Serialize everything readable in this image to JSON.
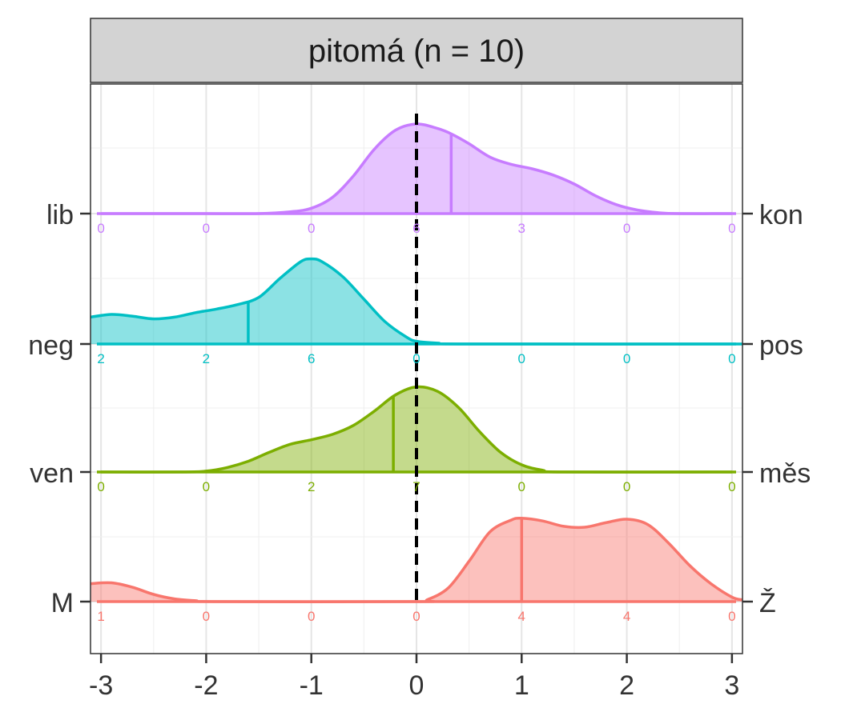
{
  "chart_data": {
    "type": "area",
    "panel_title": "pitomá (n = 10)",
    "x_ticks": [
      -3,
      -2,
      -1,
      0,
      1,
      2,
      3
    ],
    "xlim": [
      -3.1,
      3.1
    ],
    "grid": true,
    "reference_line_x": 0,
    "rows": [
      {
        "left_label": "lib",
        "right_label": "kon",
        "color": "#C77CFF",
        "mean": 0.33,
        "counts": [
          0,
          0,
          0,
          6,
          3,
          0,
          0
        ],
        "density": [
          [
            -3,
            0
          ],
          [
            -2.5,
            0
          ],
          [
            -2,
            0
          ],
          [
            -1.5,
            0
          ],
          [
            -1.2,
            0.02
          ],
          [
            -1,
            0.06
          ],
          [
            -0.8,
            0.18
          ],
          [
            -0.6,
            0.42
          ],
          [
            -0.4,
            0.72
          ],
          [
            -0.2,
            0.93
          ],
          [
            0,
            1.0
          ],
          [
            0.2,
            0.95
          ],
          [
            0.33,
            0.89
          ],
          [
            0.5,
            0.78
          ],
          [
            0.7,
            0.63
          ],
          [
            0.9,
            0.55
          ],
          [
            1.1,
            0.5
          ],
          [
            1.3,
            0.43
          ],
          [
            1.5,
            0.33
          ],
          [
            1.7,
            0.2
          ],
          [
            1.9,
            0.1
          ],
          [
            2.1,
            0.04
          ],
          [
            2.3,
            0.01
          ],
          [
            2.5,
            0
          ],
          [
            3,
            0
          ]
        ]
      },
      {
        "left_label": "neg",
        "right_label": "pos",
        "color": "#00BFC4",
        "mean": -1.6,
        "counts": [
          2,
          2,
          6,
          0,
          0,
          0,
          0
        ],
        "density": [
          [
            -3.1,
            0.3
          ],
          [
            -2.9,
            0.33
          ],
          [
            -2.7,
            0.31
          ],
          [
            -2.5,
            0.28
          ],
          [
            -2.3,
            0.3
          ],
          [
            -2.1,
            0.35
          ],
          [
            -1.9,
            0.39
          ],
          [
            -1.7,
            0.44
          ],
          [
            -1.5,
            0.52
          ],
          [
            -1.3,
            0.73
          ],
          [
            -1.1,
            0.92
          ],
          [
            -1,
            0.95
          ],
          [
            -0.9,
            0.92
          ],
          [
            -0.7,
            0.75
          ],
          [
            -0.5,
            0.5
          ],
          [
            -0.3,
            0.25
          ],
          [
            -0.1,
            0.08
          ],
          [
            0,
            0.03
          ],
          [
            0.2,
            0.01
          ],
          [
            0.5,
            0
          ],
          [
            3.1,
            0
          ]
        ]
      },
      {
        "left_label": "ven",
        "right_label": "měs",
        "color": "#7CAE00",
        "mean": -0.22,
        "counts": [
          0,
          0,
          2,
          7,
          0,
          0,
          0
        ],
        "density": [
          [
            -3,
            0
          ],
          [
            -2.2,
            0
          ],
          [
            -2,
            0.01
          ],
          [
            -1.8,
            0.05
          ],
          [
            -1.6,
            0.12
          ],
          [
            -1.4,
            0.22
          ],
          [
            -1.2,
            0.31
          ],
          [
            -1,
            0.36
          ],
          [
            -0.8,
            0.42
          ],
          [
            -0.6,
            0.52
          ],
          [
            -0.4,
            0.68
          ],
          [
            -0.2,
            0.86
          ],
          [
            0,
            0.95
          ],
          [
            0.2,
            0.9
          ],
          [
            0.4,
            0.72
          ],
          [
            0.6,
            0.45
          ],
          [
            0.8,
            0.22
          ],
          [
            1,
            0.08
          ],
          [
            1.2,
            0.02
          ],
          [
            1.4,
            0
          ],
          [
            3,
            0
          ]
        ]
      },
      {
        "left_label": "M",
        "right_label": "Ž",
        "color": "#F8766D",
        "mean": 1.0,
        "counts": [
          1,
          0,
          0,
          0,
          4,
          4,
          0
        ],
        "density": [
          [
            -3.1,
            0.2
          ],
          [
            -2.9,
            0.21
          ],
          [
            -2.7,
            0.16
          ],
          [
            -2.5,
            0.08
          ],
          [
            -2.3,
            0.03
          ],
          [
            -2.1,
            0.01
          ],
          [
            -1.9,
            0
          ],
          [
            0,
            0
          ],
          [
            0.1,
            0.02
          ],
          [
            0.3,
            0.15
          ],
          [
            0.5,
            0.45
          ],
          [
            0.7,
            0.78
          ],
          [
            0.9,
            0.91
          ],
          [
            1,
            0.93
          ],
          [
            1.2,
            0.9
          ],
          [
            1.4,
            0.84
          ],
          [
            1.6,
            0.83
          ],
          [
            1.8,
            0.88
          ],
          [
            2,
            0.92
          ],
          [
            2.2,
            0.86
          ],
          [
            2.4,
            0.65
          ],
          [
            2.6,
            0.4
          ],
          [
            2.8,
            0.2
          ],
          [
            3,
            0.05
          ],
          [
            3.1,
            0.02
          ]
        ]
      }
    ]
  }
}
